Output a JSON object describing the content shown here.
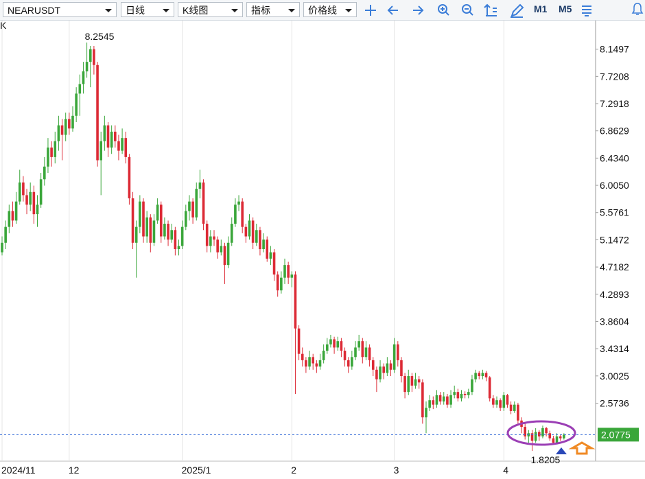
{
  "toolbar": {
    "symbol": "NEARUSDT",
    "period": "日线",
    "chart_kind": "K线图",
    "indicator": "指标",
    "price_line": "价格线",
    "m1": "M1",
    "m5": "M5"
  },
  "chart_data": {
    "type": "candlestick",
    "corner_label": "K",
    "up_color": "#3aa63a",
    "down_color": "#dc2a35",
    "price_line_color": "#3a6fd8",
    "ylim": [
      1.66,
      8.6
    ],
    "yticks": [
      8.1497,
      7.7208,
      7.2918,
      6.8629,
      {
        "value": 6.434,
        "label": "6.4340"
      },
      {
        "value": 6.005,
        "label": "6.0050"
      },
      5.5761,
      5.1472,
      4.7182,
      4.2893,
      3.8604,
      3.4314,
      3.0025,
      2.5736
    ],
    "xticks": [
      {
        "value": 0,
        "label": "2024/11"
      },
      {
        "value": 19,
        "label": "12"
      },
      {
        "value": 51,
        "label": "2025/1"
      },
      {
        "value": 82,
        "label": "2"
      },
      {
        "value": 111,
        "label": "3"
      },
      {
        "value": 142,
        "label": "4"
      }
    ],
    "candles": [
      [
        4.95,
        5.2,
        4.9,
        5.1
      ],
      [
        5.1,
        5.45,
        5.0,
        5.35
      ],
      [
        5.35,
        5.7,
        5.25,
        5.6
      ],
      [
        5.6,
        5.75,
        5.35,
        5.45
      ],
      [
        5.45,
        5.9,
        5.4,
        5.75
      ],
      [
        5.75,
        6.25,
        5.7,
        6.05
      ],
      [
        6.05,
        6.15,
        5.75,
        5.85
      ],
      [
        5.85,
        5.95,
        5.55,
        5.7
      ],
      [
        5.7,
        6.05,
        5.6,
        5.9
      ],
      [
        5.9,
        6.0,
        5.4,
        5.55
      ],
      [
        5.55,
        5.85,
        5.35,
        5.7
      ],
      [
        5.7,
        6.2,
        5.65,
        6.1
      ],
      [
        6.1,
        6.45,
        6.0,
        6.3
      ],
      [
        6.3,
        6.75,
        6.2,
        6.6
      ],
      [
        6.6,
        6.7,
        6.3,
        6.45
      ],
      [
        6.45,
        6.85,
        6.35,
        6.7
      ],
      [
        6.7,
        7.1,
        6.55,
        6.95
      ],
      [
        6.95,
        7.05,
        6.4,
        6.8
      ],
      [
        6.8,
        7.15,
        6.7,
        7.05
      ],
      [
        7.05,
        7.15,
        6.8,
        6.9
      ],
      [
        6.9,
        7.25,
        6.85,
        7.1
      ],
      [
        7.1,
        7.55,
        7.0,
        7.45
      ],
      [
        7.45,
        7.75,
        7.1,
        7.6
      ],
      [
        7.6,
        7.95,
        7.45,
        7.8
      ],
      [
        7.8,
        8.2545,
        7.7,
        7.95
      ],
      [
        7.95,
        8.2,
        7.55,
        8.15
      ],
      [
        8.15,
        8.2,
        7.75,
        7.9
      ],
      [
        7.9,
        7.95,
        6.3,
        6.4
      ],
      [
        6.4,
        6.85,
        5.85,
        6.7
      ],
      [
        6.7,
        7.1,
        6.55,
        6.95
      ],
      [
        6.95,
        7.0,
        6.45,
        6.6
      ],
      [
        6.6,
        6.95,
        6.5,
        6.85
      ],
      [
        6.85,
        6.95,
        6.6,
        6.7
      ],
      [
        6.7,
        6.8,
        6.4,
        6.55
      ],
      [
        6.55,
        6.9,
        6.5,
        6.75
      ],
      [
        6.75,
        6.85,
        6.35,
        6.45
      ],
      [
        6.45,
        6.5,
        5.7,
        5.8
      ],
      [
        5.8,
        5.9,
        5.0,
        5.1
      ],
      [
        5.1,
        5.45,
        4.55,
        5.35
      ],
      [
        5.35,
        5.85,
        5.25,
        5.75
      ],
      [
        5.75,
        5.8,
        5.1,
        5.2
      ],
      [
        5.2,
        5.6,
        5.1,
        5.5
      ],
      [
        5.5,
        5.55,
        4.95,
        5.1
      ],
      [
        5.1,
        5.55,
        5.05,
        5.45
      ],
      [
        5.45,
        5.8,
        5.4,
        5.7
      ],
      [
        5.7,
        5.75,
        5.1,
        5.2
      ],
      [
        5.2,
        5.5,
        5.15,
        5.4
      ],
      [
        5.4,
        5.45,
        5.05,
        5.15
      ],
      [
        5.15,
        5.4,
        5.1,
        5.3
      ],
      [
        5.3,
        5.35,
        4.9,
        5.0
      ],
      [
        5.0,
        5.15,
        4.9,
        5.05
      ],
      [
        5.05,
        5.45,
        5.0,
        5.35
      ],
      [
        5.35,
        5.7,
        5.3,
        5.6
      ],
      [
        5.6,
        5.85,
        5.45,
        5.75
      ],
      [
        5.75,
        5.8,
        5.4,
        5.5
      ],
      [
        5.5,
        6.05,
        5.45,
        5.95
      ],
      [
        5.95,
        6.25,
        5.8,
        6.05
      ],
      [
        6.05,
        6.1,
        5.3,
        5.4
      ],
      [
        5.4,
        5.45,
        4.95,
        5.05
      ],
      [
        5.05,
        5.3,
        4.95,
        5.2
      ],
      [
        5.2,
        5.3,
        5.05,
        5.15
      ],
      [
        5.15,
        5.2,
        4.85,
        4.95
      ],
      [
        4.95,
        5.15,
        4.9,
        5.05
      ],
      [
        5.05,
        5.1,
        4.45,
        4.75
      ],
      [
        4.75,
        5.2,
        4.7,
        5.1
      ],
      [
        5.1,
        5.5,
        5.05,
        5.4
      ],
      [
        5.4,
        5.8,
        5.35,
        5.7
      ],
      [
        5.7,
        5.85,
        5.6,
        5.75
      ],
      [
        5.75,
        5.8,
        5.25,
        5.35
      ],
      [
        5.35,
        5.4,
        5.1,
        5.2
      ],
      [
        5.2,
        5.55,
        5.15,
        5.45
      ],
      [
        5.45,
        5.5,
        5.0,
        5.1
      ],
      [
        5.1,
        5.4,
        5.05,
        5.3
      ],
      [
        5.3,
        5.35,
        4.9,
        5.0
      ],
      [
        5.0,
        5.25,
        4.95,
        5.15
      ],
      [
        5.15,
        5.2,
        4.8,
        4.85
      ],
      [
        4.85,
        5.05,
        4.75,
        4.95
      ],
      [
        4.95,
        5.0,
        4.5,
        4.6
      ],
      [
        4.6,
        4.65,
        4.25,
        4.35
      ],
      [
        4.35,
        4.65,
        4.3,
        4.55
      ],
      [
        4.55,
        4.85,
        4.45,
        4.75
      ],
      [
        4.75,
        4.8,
        4.45,
        4.55
      ],
      [
        4.55,
        4.65,
        4.4,
        4.6
      ],
      [
        4.6,
        4.65,
        2.72,
        3.75
      ],
      [
        3.75,
        3.8,
        3.25,
        3.35
      ],
      [
        3.35,
        3.45,
        3.15,
        3.25
      ],
      [
        3.25,
        3.3,
        3.05,
        3.15
      ],
      [
        3.15,
        3.4,
        3.1,
        3.3
      ],
      [
        3.3,
        3.35,
        3.1,
        3.2
      ],
      [
        3.2,
        3.25,
        3.05,
        3.15
      ],
      [
        3.15,
        3.35,
        3.1,
        3.25
      ],
      [
        3.25,
        3.5,
        3.2,
        3.4
      ],
      [
        3.4,
        3.6,
        3.35,
        3.5
      ],
      [
        3.5,
        3.65,
        3.45,
        3.58
      ],
      [
        3.58,
        3.62,
        3.35,
        3.45
      ],
      [
        3.45,
        3.62,
        3.4,
        3.55
      ],
      [
        3.55,
        3.6,
        3.3,
        3.4
      ],
      [
        3.4,
        3.45,
        3.15,
        3.25
      ],
      [
        3.25,
        3.3,
        3.05,
        3.15
      ],
      [
        3.15,
        3.4,
        3.1,
        3.3
      ],
      [
        3.3,
        3.55,
        3.25,
        3.45
      ],
      [
        3.45,
        3.65,
        3.4,
        3.55
      ],
      [
        3.55,
        3.6,
        3.2,
        3.3
      ],
      [
        3.3,
        3.55,
        3.25,
        3.45
      ],
      [
        3.45,
        3.5,
        3.15,
        3.25
      ],
      [
        3.25,
        3.3,
        3.0,
        3.1
      ],
      [
        3.1,
        3.15,
        2.75,
        2.95
      ],
      [
        2.95,
        3.25,
        2.9,
        3.15
      ],
      [
        3.15,
        3.2,
        2.95,
        3.05
      ],
      [
        3.05,
        3.3,
        3.0,
        3.2
      ],
      [
        3.2,
        3.25,
        3.0,
        3.1
      ],
      [
        3.1,
        3.6,
        3.05,
        3.5
      ],
      [
        3.5,
        3.55,
        3.15,
        3.25
      ],
      [
        3.25,
        3.3,
        2.9,
        3.0
      ],
      [
        3.0,
        3.05,
        2.65,
        2.75
      ],
      [
        2.75,
        3.1,
        2.7,
        3.0
      ],
      [
        3.0,
        3.05,
        2.75,
        2.85
      ],
      [
        2.85,
        3.05,
        2.8,
        2.95
      ],
      [
        2.95,
        3.0,
        2.8,
        2.9
      ],
      [
        2.9,
        2.95,
        2.25,
        2.35
      ],
      [
        2.35,
        2.6,
        2.1,
        2.5
      ],
      [
        2.5,
        2.7,
        2.45,
        2.62
      ],
      [
        2.62,
        2.68,
        2.48,
        2.55
      ],
      [
        2.55,
        2.78,
        2.5,
        2.7
      ],
      [
        2.7,
        2.75,
        2.55,
        2.6
      ],
      [
        2.6,
        2.75,
        2.55,
        2.68
      ],
      [
        2.68,
        2.72,
        2.5,
        2.55
      ],
      [
        2.55,
        2.78,
        2.5,
        2.7
      ],
      [
        2.7,
        2.85,
        2.65,
        2.75
      ],
      [
        2.75,
        2.8,
        2.6,
        2.65
      ],
      [
        2.65,
        2.78,
        2.6,
        2.72
      ],
      [
        2.72,
        2.76,
        2.65,
        2.7
      ],
      [
        2.7,
        2.8,
        2.65,
        2.75
      ],
      [
        2.75,
        3.02,
        2.7,
        2.95
      ],
      [
        2.95,
        3.1,
        2.9,
        3.05
      ],
      [
        3.05,
        3.08,
        2.95,
        3.0
      ],
      [
        3.0,
        3.1,
        2.95,
        3.05
      ],
      [
        3.05,
        3.08,
        2.92,
        2.98
      ],
      [
        2.98,
        3.0,
        2.6,
        2.65
      ],
      [
        2.65,
        2.7,
        2.5,
        2.55
      ],
      [
        2.55,
        2.68,
        2.5,
        2.62
      ],
      [
        2.62,
        2.65,
        2.45,
        2.5
      ],
      [
        2.5,
        2.75,
        2.45,
        2.7
      ],
      [
        2.7,
        2.72,
        2.5,
        2.55
      ],
      [
        2.55,
        2.6,
        2.4,
        2.45
      ],
      [
        2.45,
        2.6,
        2.42,
        2.55
      ],
      [
        2.55,
        2.58,
        2.25,
        2.3
      ],
      [
        2.3,
        2.35,
        2.1,
        2.2
      ],
      [
        2.2,
        2.25,
        2.0,
        2.05
      ],
      [
        2.05,
        2.15,
        1.95,
        2.1
      ],
      [
        2.1,
        2.15,
        1.8205,
        1.98
      ],
      [
        1.98,
        2.18,
        1.95,
        2.12
      ],
      [
        2.12,
        2.15,
        1.98,
        2.05
      ],
      [
        2.05,
        2.22,
        2.02,
        2.18
      ],
      [
        2.18,
        2.2,
        2.05,
        2.1
      ],
      [
        2.1,
        2.14,
        1.98,
        2.02
      ],
      [
        2.02,
        2.06,
        1.92,
        1.95
      ],
      [
        1.95,
        2.1,
        1.93,
        2.05
      ],
      [
        2.05,
        2.08,
        1.98,
        2.02
      ],
      [
        2.02,
        2.1,
        2.0,
        2.0775
      ]
    ]
  }
}
